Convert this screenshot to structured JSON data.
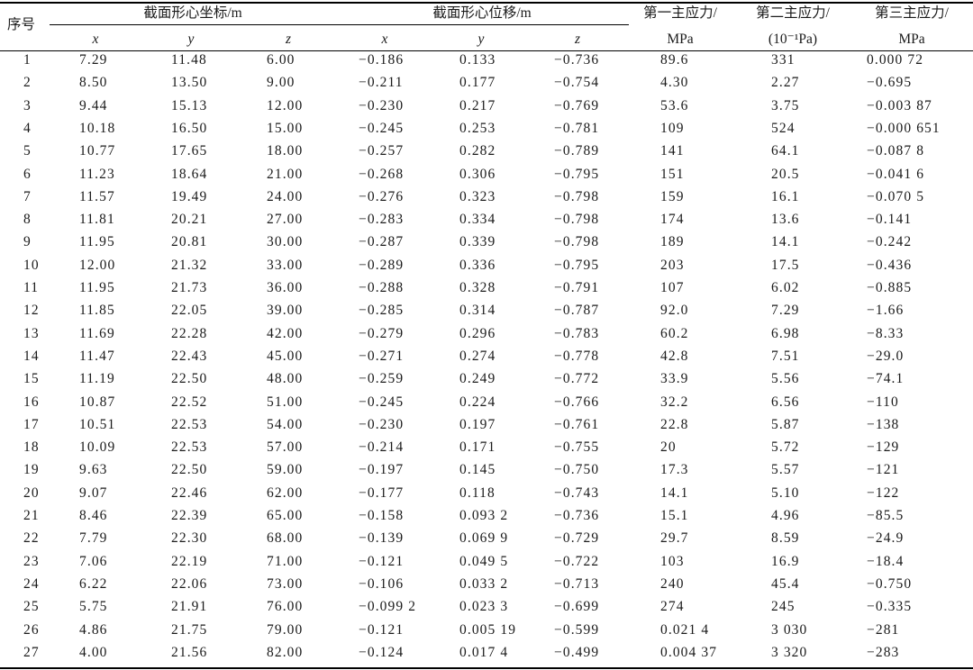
{
  "header": {
    "seq": "序号",
    "group_coord": "截面形心坐标/m",
    "group_disp": "截面形心位移/m",
    "stress1_a": "第一主应力/",
    "stress1_b": "MPa",
    "stress2_a": "第二主应力/",
    "stress2_b": "(10⁻¹Pa)",
    "stress3_a": "第三主应力/",
    "stress3_b": "MPa",
    "sub": [
      "x",
      "y",
      "z",
      "x",
      "y",
      "z"
    ]
  },
  "rows": [
    [
      "1",
      "7.29",
      "11.48",
      "6.00",
      "−0.186",
      "0.133",
      "−0.736",
      "89.6",
      "331",
      "0.000 72"
    ],
    [
      "2",
      "8.50",
      "13.50",
      "9.00",
      "−0.211",
      "0.177",
      "−0.754",
      "4.30",
      "2.27",
      "−0.695"
    ],
    [
      "3",
      "9.44",
      "15.13",
      "12.00",
      "−0.230",
      "0.217",
      "−0.769",
      "53.6",
      "3.75",
      "−0.003 87"
    ],
    [
      "4",
      "10.18",
      "16.50",
      "15.00",
      "−0.245",
      "0.253",
      "−0.781",
      "109",
      "524",
      "−0.000 651"
    ],
    [
      "5",
      "10.77",
      "17.65",
      "18.00",
      "−0.257",
      "0.282",
      "−0.789",
      "141",
      "64.1",
      "−0.087 8"
    ],
    [
      "6",
      "11.23",
      "18.64",
      "21.00",
      "−0.268",
      "0.306",
      "−0.795",
      "151",
      "20.5",
      "−0.041 6"
    ],
    [
      "7",
      "11.57",
      "19.49",
      "24.00",
      "−0.276",
      "0.323",
      "−0.798",
      "159",
      "16.1",
      "−0.070 5"
    ],
    [
      "8",
      "11.81",
      "20.21",
      "27.00",
      "−0.283",
      "0.334",
      "−0.798",
      "174",
      "13.6",
      "−0.141"
    ],
    [
      "9",
      "11.95",
      "20.81",
      "30.00",
      "−0.287",
      "0.339",
      "−0.798",
      "189",
      "14.1",
      "−0.242"
    ],
    [
      "10",
      "12.00",
      "21.32",
      "33.00",
      "−0.289",
      "0.336",
      "−0.795",
      "203",
      "17.5",
      "−0.436"
    ],
    [
      "11",
      "11.95",
      "21.73",
      "36.00",
      "−0.288",
      "0.328",
      "−0.791",
      "107",
      "6.02",
      "−0.885"
    ],
    [
      "12",
      "11.85",
      "22.05",
      "39.00",
      "−0.285",
      "0.314",
      "−0.787",
      "92.0",
      "7.29",
      "−1.66"
    ],
    [
      "13",
      "11.69",
      "22.28",
      "42.00",
      "−0.279",
      "0.296",
      "−0.783",
      "60.2",
      "6.98",
      "−8.33"
    ],
    [
      "14",
      "11.47",
      "22.43",
      "45.00",
      "−0.271",
      "0.274",
      "−0.778",
      "42.8",
      "7.51",
      "−29.0"
    ],
    [
      "15",
      "11.19",
      "22.50",
      "48.00",
      "−0.259",
      "0.249",
      "−0.772",
      "33.9",
      "5.56",
      "−74.1"
    ],
    [
      "16",
      "10.87",
      "22.52",
      "51.00",
      "−0.245",
      "0.224",
      "−0.766",
      "32.2",
      "6.56",
      "−110"
    ],
    [
      "17",
      "10.51",
      "22.53",
      "54.00",
      "−0.230",
      "0.197",
      "−0.761",
      "22.8",
      "5.87",
      "−138"
    ],
    [
      "18",
      "10.09",
      "22.53",
      "57.00",
      "−0.214",
      "0.171",
      "−0.755",
      "20",
      "5.72",
      "−129"
    ],
    [
      "19",
      "9.63",
      "22.50",
      "59.00",
      "−0.197",
      "0.145",
      "−0.750",
      "17.3",
      "5.57",
      "−121"
    ],
    [
      "20",
      "9.07",
      "22.46",
      "62.00",
      "−0.177",
      "0.118",
      "−0.743",
      "14.1",
      "5.10",
      "−122"
    ],
    [
      "21",
      "8.46",
      "22.39",
      "65.00",
      "−0.158",
      "0.093 2",
      "−0.736",
      "15.1",
      "4.96",
      "−85.5"
    ],
    [
      "22",
      "7.79",
      "22.30",
      "68.00",
      "−0.139",
      "0.069 9",
      "−0.729",
      "29.7",
      "8.59",
      "−24.9"
    ],
    [
      "23",
      "7.06",
      "22.19",
      "71.00",
      "−0.121",
      "0.049 5",
      "−0.722",
      "103",
      "16.9",
      "−18.4"
    ],
    [
      "24",
      "6.22",
      "22.06",
      "73.00",
      "−0.106",
      "0.033 2",
      "−0.713",
      "240",
      "45.4",
      "−0.750"
    ],
    [
      "25",
      "5.75",
      "21.91",
      "76.00",
      "−0.099 2",
      "0.023 3",
      "−0.699",
      "274",
      "245",
      "−0.335"
    ],
    [
      "26",
      "4.86",
      "21.75",
      "79.00",
      "−0.121",
      "0.005 19",
      "−0.599",
      "0.021 4",
      "3 030",
      "−281"
    ],
    [
      "27",
      "4.00",
      "21.56",
      "82.00",
      "−0.124",
      "0.017 4",
      "−0.499",
      "0.004 37",
      "3 320",
      "−283"
    ]
  ]
}
